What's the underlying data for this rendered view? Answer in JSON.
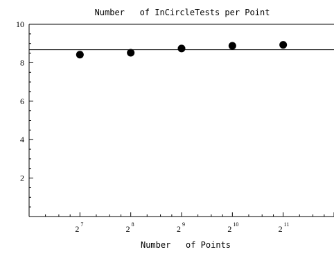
{
  "chart_data": {
    "type": "scatter",
    "title": "Number   of InCircleTests per Point",
    "xlabel": "Number   of Points",
    "ylabel": "",
    "x_scale": "log2",
    "x_ticks": [
      {
        "value": 128,
        "base": "2",
        "exp": "7"
      },
      {
        "value": 256,
        "base": "2",
        "exp": "8"
      },
      {
        "value": 512,
        "base": "2",
        "exp": "9"
      },
      {
        "value": 1024,
        "base": "2",
        "exp": "10"
      },
      {
        "value": 2048,
        "base": "2",
        "exp": "11"
      }
    ],
    "xlim": [
      64,
      4096
    ],
    "y_ticks": [
      2,
      4,
      6,
      8,
      10
    ],
    "ylim": [
      0,
      10
    ],
    "grid": false,
    "series": [
      {
        "points": [
          {
            "x": 128,
            "y": 8.42
          },
          {
            "x": 256,
            "y": 8.52
          },
          {
            "x": 512,
            "y": 8.74
          },
          {
            "x": 1024,
            "y": 8.88
          },
          {
            "x": 2048,
            "y": 8.93
          }
        ]
      }
    ],
    "reference_line": {
      "y": 8.68
    }
  }
}
